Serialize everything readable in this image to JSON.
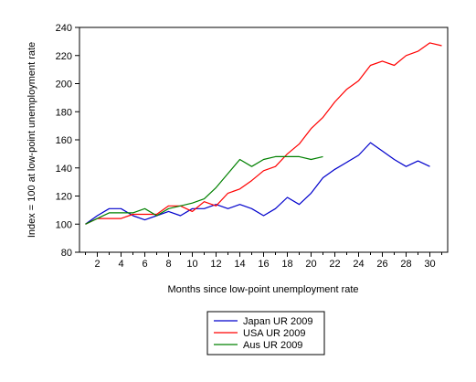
{
  "chart_data": {
    "type": "line",
    "title": "",
    "xlabel": "Months since low-point unemployment rate",
    "ylabel": "Index = 100 at low-point unemployment rate",
    "x": [
      1,
      2,
      3,
      4,
      5,
      6,
      7,
      8,
      9,
      10,
      11,
      12,
      13,
      14,
      15,
      16,
      17,
      18,
      19,
      20,
      21,
      22,
      23,
      24,
      25,
      26,
      27,
      28,
      29,
      30,
      31
    ],
    "x_tick_labels": [
      "2",
      "4",
      "6",
      "8",
      "10",
      "12",
      "14",
      "16",
      "18",
      "20",
      "22",
      "24",
      "26",
      "28",
      "30"
    ],
    "ylim": [
      80,
      240
    ],
    "y_ticks": [
      80,
      100,
      120,
      140,
      160,
      180,
      200,
      220,
      240
    ],
    "grid": false,
    "legend_position": "bottom-center",
    "series": [
      {
        "name": "Japan UR 2009",
        "color": "#0000cc",
        "values": [
          100,
          106,
          111,
          111,
          106,
          103,
          106,
          109,
          106,
          111,
          111,
          114,
          111,
          114,
          111,
          106,
          111,
          119,
          114,
          122,
          133,
          139,
          144,
          149,
          158,
          152,
          146,
          141,
          145,
          141,
          null
        ]
      },
      {
        "name": "USA UR 2009",
        "color": "#ff0000",
        "values": [
          100,
          104,
          104,
          104,
          107,
          107,
          107,
          113,
          113,
          109,
          116,
          113,
          122,
          125,
          131,
          138,
          141,
          150,
          157,
          168,
          176,
          187,
          196,
          202,
          213,
          216,
          213,
          220,
          223,
          229,
          227
        ]
      },
      {
        "name": "Aus UR 2009",
        "color": "#008000",
        "values": [
          100,
          104,
          108,
          108,
          108,
          111,
          106,
          111,
          113,
          115,
          118,
          126,
          136,
          146,
          141,
          146,
          148,
          148,
          148,
          146,
          148,
          null,
          null,
          null,
          null,
          null,
          null,
          null,
          null,
          null,
          null
        ]
      }
    ]
  }
}
